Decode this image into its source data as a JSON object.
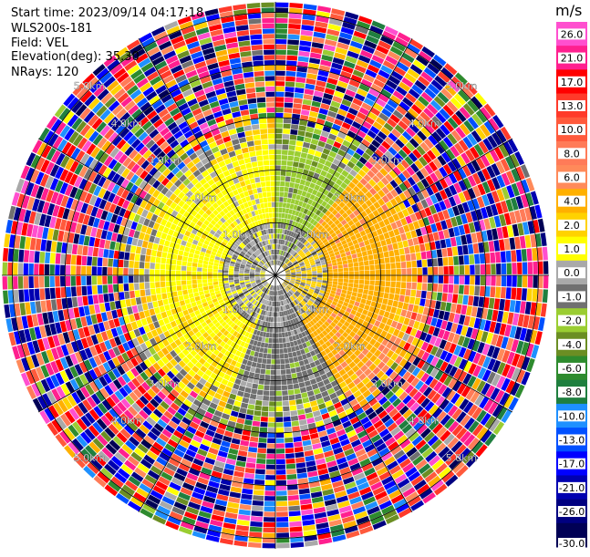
{
  "header": {
    "start_time": "Start time: 2023/09/14 04:17:18",
    "instrument": "WLS200s-181",
    "field": "Field: VEL",
    "elevation": "Elevation(deg): 35.30",
    "nrays": "NRays: 120"
  },
  "chart_data": {
    "type": "heatmap",
    "projection": "polar-ppi",
    "field": "VEL",
    "units": "m/s",
    "n_rays": 120,
    "elevation_deg": 35.3,
    "range_rings_km": [
      1.0,
      2.0,
      3.0,
      4.0,
      5.0
    ],
    "ring_labels": [
      "1.0km",
      "2.0km",
      "3.0km",
      "4.0km",
      "5.0km"
    ],
    "spokes": 12,
    "colorbar": {
      "label": "m/s",
      "ticks": [
        "26.0",
        "21.0",
        "17.0",
        "13.0",
        "10.0",
        "8.0",
        "6.0",
        "4.0",
        "2.0",
        "1.0",
        "0.0",
        "-1.0",
        "-2.0",
        "-4.0",
        "-6.0",
        "-8.0",
        "-10.0",
        "-13.0",
        "-17.0",
        "-21.0",
        "-26.0",
        "-30.0"
      ],
      "bins": [
        {
          "lo": 26,
          "hi": 30,
          "color": "#ff4fcf"
        },
        {
          "lo": 21,
          "hi": 26,
          "color": "#ff1f8f"
        },
        {
          "lo": 17,
          "hi": 21,
          "color": "#ff0000"
        },
        {
          "lo": 13,
          "hi": 17,
          "color": "#ff3a2a"
        },
        {
          "lo": 10,
          "hi": 13,
          "color": "#ff5a3c"
        },
        {
          "lo": 8,
          "hi": 10,
          "color": "#ff7b58"
        },
        {
          "lo": 6,
          "hi": 8,
          "color": "#ff8a5a"
        },
        {
          "lo": 4,
          "hi": 6,
          "color": "#ffb000"
        },
        {
          "lo": 2,
          "hi": 4,
          "color": "#ffd200"
        },
        {
          "lo": 1,
          "hi": 2,
          "color": "#ffff00"
        },
        {
          "lo": 0,
          "hi": 1,
          "color": "#a9a9a9"
        },
        {
          "lo": -1,
          "hi": 0,
          "color": "#707070"
        },
        {
          "lo": -2,
          "hi": -1,
          "color": "#9acd32"
        },
        {
          "lo": -4,
          "hi": -2,
          "color": "#6b8e23"
        },
        {
          "lo": -6,
          "hi": -4,
          "color": "#2e8b2e"
        },
        {
          "lo": -8,
          "hi": -6,
          "color": "#1f7f3f"
        },
        {
          "lo": -10,
          "hi": -8,
          "color": "#1e90ff"
        },
        {
          "lo": -13,
          "hi": -10,
          "color": "#0050ff"
        },
        {
          "lo": -17,
          "hi": -13,
          "color": "#0000ff"
        },
        {
          "lo": -21,
          "hi": -17,
          "color": "#0000b0"
        },
        {
          "lo": -26,
          "hi": -21,
          "color": "#000080"
        },
        {
          "lo": -30,
          "hi": -26,
          "color": "#000055"
        }
      ]
    },
    "pattern": {
      "inner_ring_km": 1.0,
      "mid_ring_km": 2.0,
      "signal_max_km": 3.0,
      "description_sectors": [
        {
          "az_from": 270,
          "az_to": 360,
          "value": 1.5
        },
        {
          "az_from": 200,
          "az_to": 270,
          "value": 1.8
        },
        {
          "az_from": 0,
          "az_to": 40,
          "value": -1.5
        },
        {
          "az_from": 40,
          "az_to": 150,
          "value": 5.5
        },
        {
          "az_from": 150,
          "az_to": 200,
          "value": -0.5
        }
      ]
    }
  }
}
